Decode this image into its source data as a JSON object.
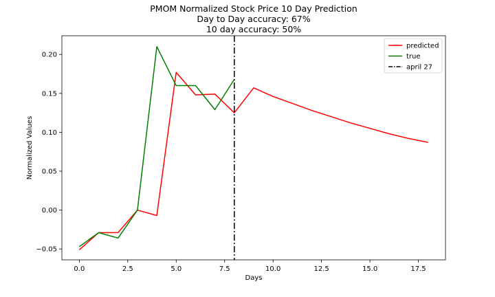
{
  "chart_data": {
    "type": "line",
    "title": [
      "PMOM Normalized Stock Price 10 Day Prediction",
      "Day to Day accuracy: 67%",
      "10 day accuracy: 50%"
    ],
    "xlabel": "Days",
    "ylabel": "Normalized Values",
    "xlim": [
      -0.9,
      18.9
    ],
    "ylim": [
      -0.064,
      0.224
    ],
    "xticks": [
      0.0,
      2.5,
      5.0,
      7.5,
      10.0,
      12.5,
      15.0,
      17.5
    ],
    "xtick_labels": [
      "0.0",
      "2.5",
      "5.0",
      "7.5",
      "10.0",
      "12.5",
      "15.0",
      "17.5"
    ],
    "yticks": [
      -0.05,
      0.0,
      0.05,
      0.1,
      0.15,
      0.2
    ],
    "ytick_labels": [
      "−0.05",
      "0.00",
      "0.05",
      "0.10",
      "0.15",
      "0.20"
    ],
    "grid": false,
    "legend_position": "top-right",
    "series": [
      {
        "name": "predicted",
        "color": "#ff0000",
        "x": [
          0,
          1,
          2,
          3,
          4,
          5,
          6,
          7,
          8,
          9,
          10,
          11,
          12,
          13,
          14,
          15,
          16,
          17,
          18
        ],
        "y": [
          -0.051,
          -0.029,
          -0.029,
          0.0,
          -0.007,
          0.177,
          0.148,
          0.149,
          0.125,
          0.157,
          0.146,
          0.137,
          0.128,
          0.12,
          0.112,
          0.105,
          0.098,
          0.092,
          0.087
        ]
      },
      {
        "name": "true",
        "color": "#008000",
        "x": [
          0,
          1,
          2,
          3,
          4,
          5,
          6,
          7,
          8
        ],
        "y": [
          -0.047,
          -0.029,
          -0.036,
          0.0,
          0.21,
          0.16,
          0.16,
          0.129,
          0.168
        ]
      }
    ],
    "vline": {
      "name": "april 27",
      "x": 8,
      "color": "#000000",
      "style": "dashdot"
    }
  }
}
